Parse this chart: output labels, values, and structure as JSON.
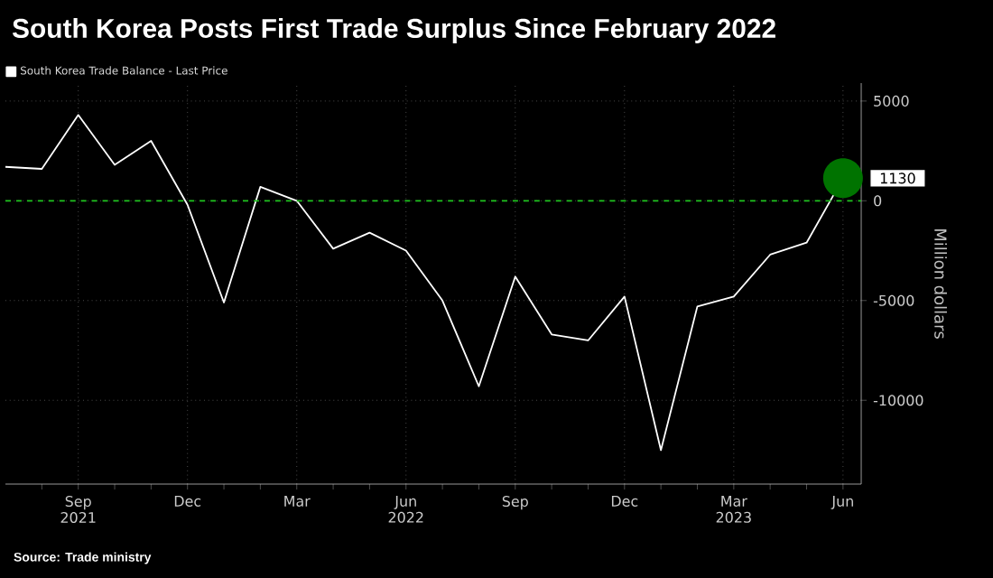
{
  "chart_data": {
    "type": "line",
    "title": "South Korea Posts First Trade Surplus Since February 2022",
    "ylabel": "Million dollars",
    "x": [
      "2021-07",
      "2021-08",
      "2021-09",
      "2021-10",
      "2021-11",
      "2021-12",
      "2022-01",
      "2022-02",
      "2022-03",
      "2022-04",
      "2022-05",
      "2022-06",
      "2022-07",
      "2022-08",
      "2022-09",
      "2022-10",
      "2022-11",
      "2022-12",
      "2023-01",
      "2023-02",
      "2023-03",
      "2023-04",
      "2023-05",
      "2023-06"
    ],
    "series": [
      {
        "name": "South Korea Trade Balance - Last Price",
        "color": "#ffffff",
        "values": [
          1700,
          1600,
          4300,
          1800,
          3000,
          -200,
          -5100,
          700,
          0,
          -2400,
          -1600,
          -2500,
          -5000,
          -9300,
          -3800,
          -6700,
          -7000,
          -4800,
          -12500,
          -5300,
          -4800,
          -2700,
          -2100,
          1130
        ]
      }
    ],
    "xlim": [
      "2021-07",
      "2023-06-16"
    ],
    "ylim": [
      -14200,
      5900
    ],
    "xticks": [
      {
        "value": "2021-08",
        "label": null
      },
      {
        "value": "2021-09",
        "label": "Sep 2021"
      },
      {
        "value": "2021-10",
        "label": null
      },
      {
        "value": "2021-11",
        "label": null
      },
      {
        "value": "2021-12",
        "label": "Dec"
      },
      {
        "value": "2022-01",
        "label": null
      },
      {
        "value": "2022-02",
        "label": null
      },
      {
        "value": "2022-03",
        "label": "Mar"
      },
      {
        "value": "2022-04",
        "label": null
      },
      {
        "value": "2022-05",
        "label": null
      },
      {
        "value": "2022-06",
        "label": "Jun 2022"
      },
      {
        "value": "2022-07",
        "label": null
      },
      {
        "value": "2022-08",
        "label": null
      },
      {
        "value": "2022-09",
        "label": "Sep"
      },
      {
        "value": "2022-10",
        "label": null
      },
      {
        "value": "2022-11",
        "label": null
      },
      {
        "value": "2022-12",
        "label": "Dec"
      },
      {
        "value": "2023-01",
        "label": null
      },
      {
        "value": "2023-02",
        "label": null
      },
      {
        "value": "2023-03",
        "label": "Mar 2023"
      },
      {
        "value": "2023-04",
        "label": null
      },
      {
        "value": "2023-05",
        "label": null
      },
      {
        "value": "2023-06",
        "label": "Jun"
      }
    ],
    "yticks": [
      -10000,
      -5000,
      0,
      5000
    ],
    "ref_lines": [
      {
        "axis": "y",
        "value": 0,
        "color": "#1fc41f",
        "line_style": "dashed"
      }
    ],
    "annotations": [
      {
        "text": "1130",
        "x": "2023-06",
        "y": 1130
      },
      "Source: Trade ministry"
    ],
    "grid": true,
    "legend": "top left"
  }
}
